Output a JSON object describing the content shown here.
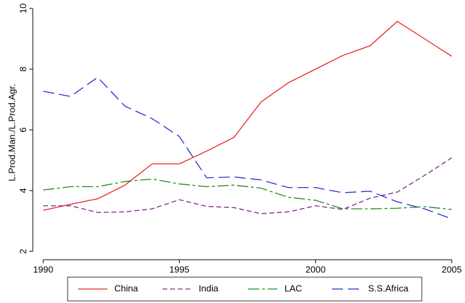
{
  "chart_data": {
    "type": "line",
    "y_label": "L.Prod.Man./L.Prod.Agr.",
    "x": [
      1990,
      1991,
      1992,
      1993,
      1994,
      1995,
      1996,
      1997,
      1998,
      1999,
      2000,
      2001,
      2002,
      2003,
      2004,
      2005
    ],
    "series": [
      {
        "name": "China",
        "color": "#e8231c",
        "values": [
          3.35,
          3.55,
          3.73,
          4.18,
          4.88,
          4.88,
          5.3,
          5.75,
          6.92,
          7.55,
          8.0,
          8.45,
          8.77,
          9.57,
          9.0,
          8.42
        ]
      },
      {
        "name": "India",
        "color": "#7b2483",
        "values": [
          3.5,
          3.5,
          3.28,
          3.3,
          3.4,
          3.7,
          3.48,
          3.44,
          3.24,
          3.3,
          3.5,
          3.38,
          3.75,
          3.95,
          4.5,
          5.08
        ]
      },
      {
        "name": "LAC",
        "color": "#1a8a1a",
        "values": [
          4.02,
          4.13,
          4.13,
          4.3,
          4.38,
          4.22,
          4.13,
          4.18,
          4.08,
          3.78,
          3.68,
          3.4,
          3.4,
          3.42,
          3.47,
          3.38
        ]
      },
      {
        "name": "S.S.Africa",
        "color": "#1f2fd0",
        "values": [
          7.27,
          7.1,
          7.73,
          6.78,
          6.37,
          5.78,
          4.42,
          4.45,
          4.35,
          4.1,
          4.1,
          3.93,
          3.98,
          3.63,
          3.4,
          3.07
        ]
      }
    ],
    "xlim": [
      1990,
      2005
    ],
    "xticks": [
      1990,
      1995,
      2000,
      2005
    ],
    "ylim": [
      2,
      10
    ],
    "yticks": [
      2,
      4,
      6,
      8,
      10
    ],
    "legend": "bottom"
  }
}
